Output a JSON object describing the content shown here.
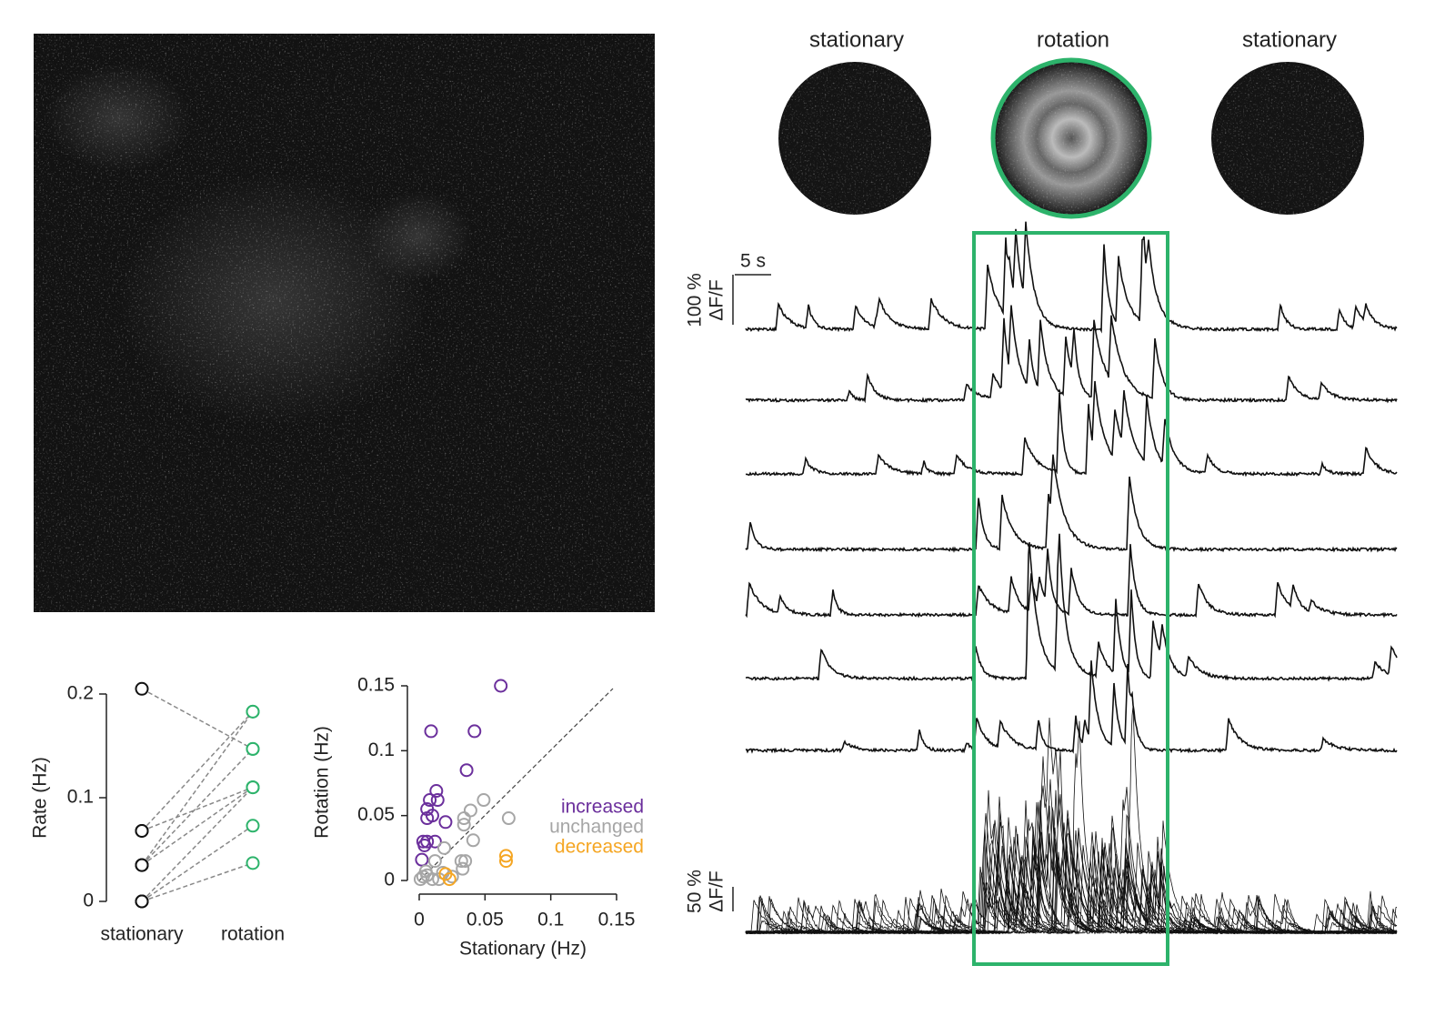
{
  "images": {
    "labels": [
      "stationary",
      "rotation",
      "stationary"
    ]
  },
  "chart_data": [
    {
      "type": "paired",
      "ylabel": "Rate (Hz)",
      "categories": [
        "stationary",
        "rotation"
      ],
      "category_colors": [
        "#111111",
        "#2db36b"
      ],
      "ylim": [
        0,
        0.2
      ],
      "yticks": [
        0,
        0.1,
        0.2
      ],
      "series": [
        {
          "values": [
            0.205,
            0.147
          ]
        },
        {
          "values": [
            0.068,
            0.183
          ]
        },
        {
          "values": [
            0.068,
            0.11
          ]
        },
        {
          "values": [
            0.035,
            0.183
          ]
        },
        {
          "values": [
            0.035,
            0.147
          ]
        },
        {
          "values": [
            0.035,
            0.11
          ]
        },
        {
          "values": [
            0,
            0.11
          ]
        },
        {
          "values": [
            0,
            0.073
          ]
        },
        {
          "values": [
            0,
            0.037
          ]
        }
      ]
    },
    {
      "type": "scatter",
      "xlabel": "Stationary (Hz)",
      "ylabel": "Rotation (Hz)",
      "xlim": [
        0,
        0.15
      ],
      "ylim": [
        0,
        0.15
      ],
      "xticks": [
        0,
        0.05,
        0.1,
        0.15
      ],
      "yticks": [
        0,
        0.05,
        0.1,
        0.15
      ],
      "series": [
        {
          "name": "increased",
          "color": "#6b2f9c",
          "x": [
            0.062,
            0.009,
            0.042,
            0.036,
            0.013,
            0.008,
            0.014,
            0.006,
            0.01,
            0.006,
            0.02,
            0.003,
            0.006,
            0.012,
            0.002,
            0.004
          ],
          "values": [
            0.15,
            0.115,
            0.115,
            0.085,
            0.069,
            0.062,
            0.062,
            0.055,
            0.05,
            0.048,
            0.045,
            0.03,
            0.03,
            0.03,
            0.016,
            0.027
          ]
        },
        {
          "name": "unchanged",
          "color": "#a6a6a6",
          "x": [
            0.049,
            0.039,
            0.068,
            0.034,
            0.034,
            0.041,
            0.019,
            0.032,
            0.035,
            0.033,
            0.012,
            0.005,
            0.003,
            0.01,
            0.018,
            0.025,
            0.001,
            0.006,
            0.015
          ],
          "values": [
            0.062,
            0.054,
            0.048,
            0.048,
            0.043,
            0.031,
            0.025,
            0.015,
            0.015,
            0.009,
            0.015,
            0.007,
            0.003,
            0.001,
            0.006,
            0.003,
            0.001,
            0.004,
            0.001
          ]
        },
        {
          "name": "decreased",
          "color": "#f5a623",
          "x": [
            0.066,
            0.066,
            0.023,
            0.02
          ],
          "values": [
            0.019,
            0.015,
            0.001,
            0.005
          ]
        }
      ]
    },
    {
      "type": "traces",
      "time_scale": "5 s",
      "scale_top": [
        "100 %",
        "ΔF/F"
      ],
      "scale_bottom": [
        "50 %",
        "ΔF/F"
      ]
    }
  ]
}
